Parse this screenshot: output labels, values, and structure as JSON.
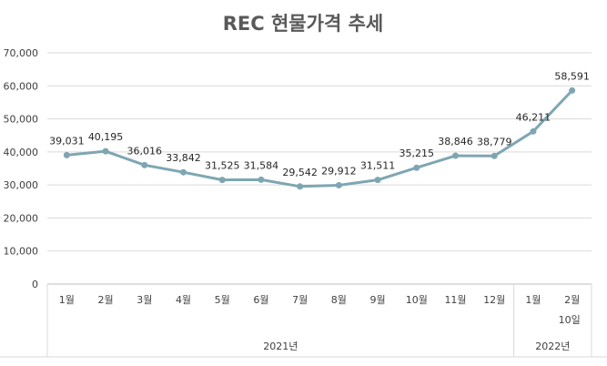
{
  "chart_data": {
    "type": "line",
    "title": "REC 현물가격 추세",
    "xlabel": "",
    "ylabel": "",
    "ylim": [
      0,
      70000
    ],
    "yticks": [
      "0",
      "10,000",
      "20,000",
      "30,000",
      "40,000",
      "50,000",
      "60,000",
      "70,000"
    ],
    "grid": true,
    "legend": "none",
    "categories": [
      "1월",
      "2월",
      "3월",
      "4월",
      "5월",
      "6월",
      "7월",
      "8월",
      "9월",
      "10월",
      "11월",
      "12월",
      "1월",
      "2월"
    ],
    "category_sublabels": [
      "",
      "",
      "",
      "",
      "",
      "",
      "",
      "",
      "",
      "",
      "",
      "",
      "",
      "10일"
    ],
    "groups": [
      {
        "label": "2021년",
        "count": 12
      },
      {
        "label": "2022년",
        "count": 2
      }
    ],
    "series": [
      {
        "name": "REC 현물가격",
        "color": "#7ea6b2",
        "values": [
          39031,
          40195,
          36016,
          33842,
          31525,
          31584,
          29542,
          29912,
          31511,
          35215,
          38846,
          38779,
          46211,
          58591
        ],
        "data_labels": [
          "39,031",
          "40,195",
          "36,016",
          "33,842",
          "31,525",
          "31,584",
          "29,542",
          "29,912",
          "31,511",
          "35,215",
          "38,846",
          "38,779",
          "46,211",
          "58,591"
        ]
      }
    ]
  }
}
